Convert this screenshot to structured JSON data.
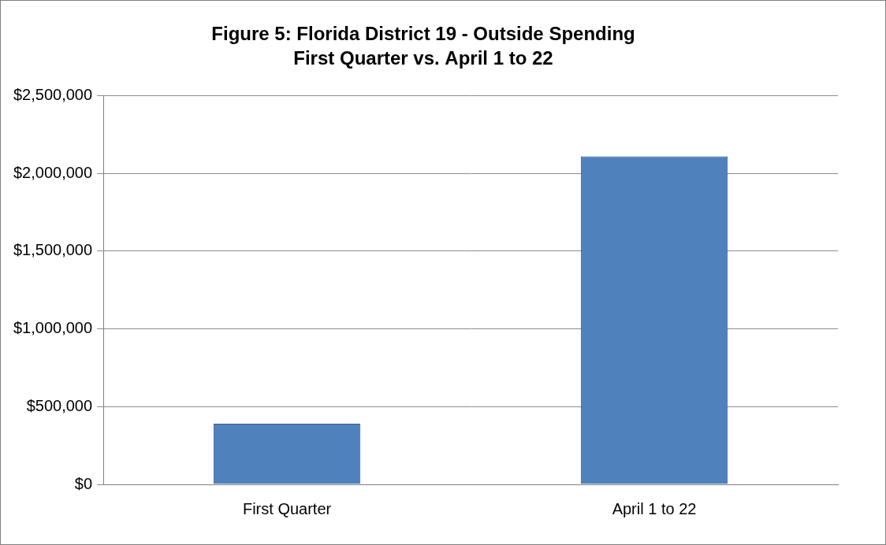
{
  "chart_data": {
    "type": "bar",
    "title": [
      "Figure 5: Florida District 19 - Outside Spending",
      "First Quarter vs. April 1 to 22"
    ],
    "categories": [
      "First Quarter",
      "April 1 to 22"
    ],
    "values": [
      390000,
      2110000
    ],
    "color": "#4f81bd",
    "ylim": [
      0,
      2500000
    ],
    "yticks": [
      {
        "value": 0,
        "label": "$0"
      },
      {
        "value": 500000,
        "label": "$500,000"
      },
      {
        "value": 1000000,
        "label": "$1,000,000"
      },
      {
        "value": 1500000,
        "label": "$1,500,000"
      },
      {
        "value": 2000000,
        "label": "$2,000,000"
      },
      {
        "value": 2500000,
        "label": "$2,500,000"
      }
    ],
    "grid": true
  }
}
